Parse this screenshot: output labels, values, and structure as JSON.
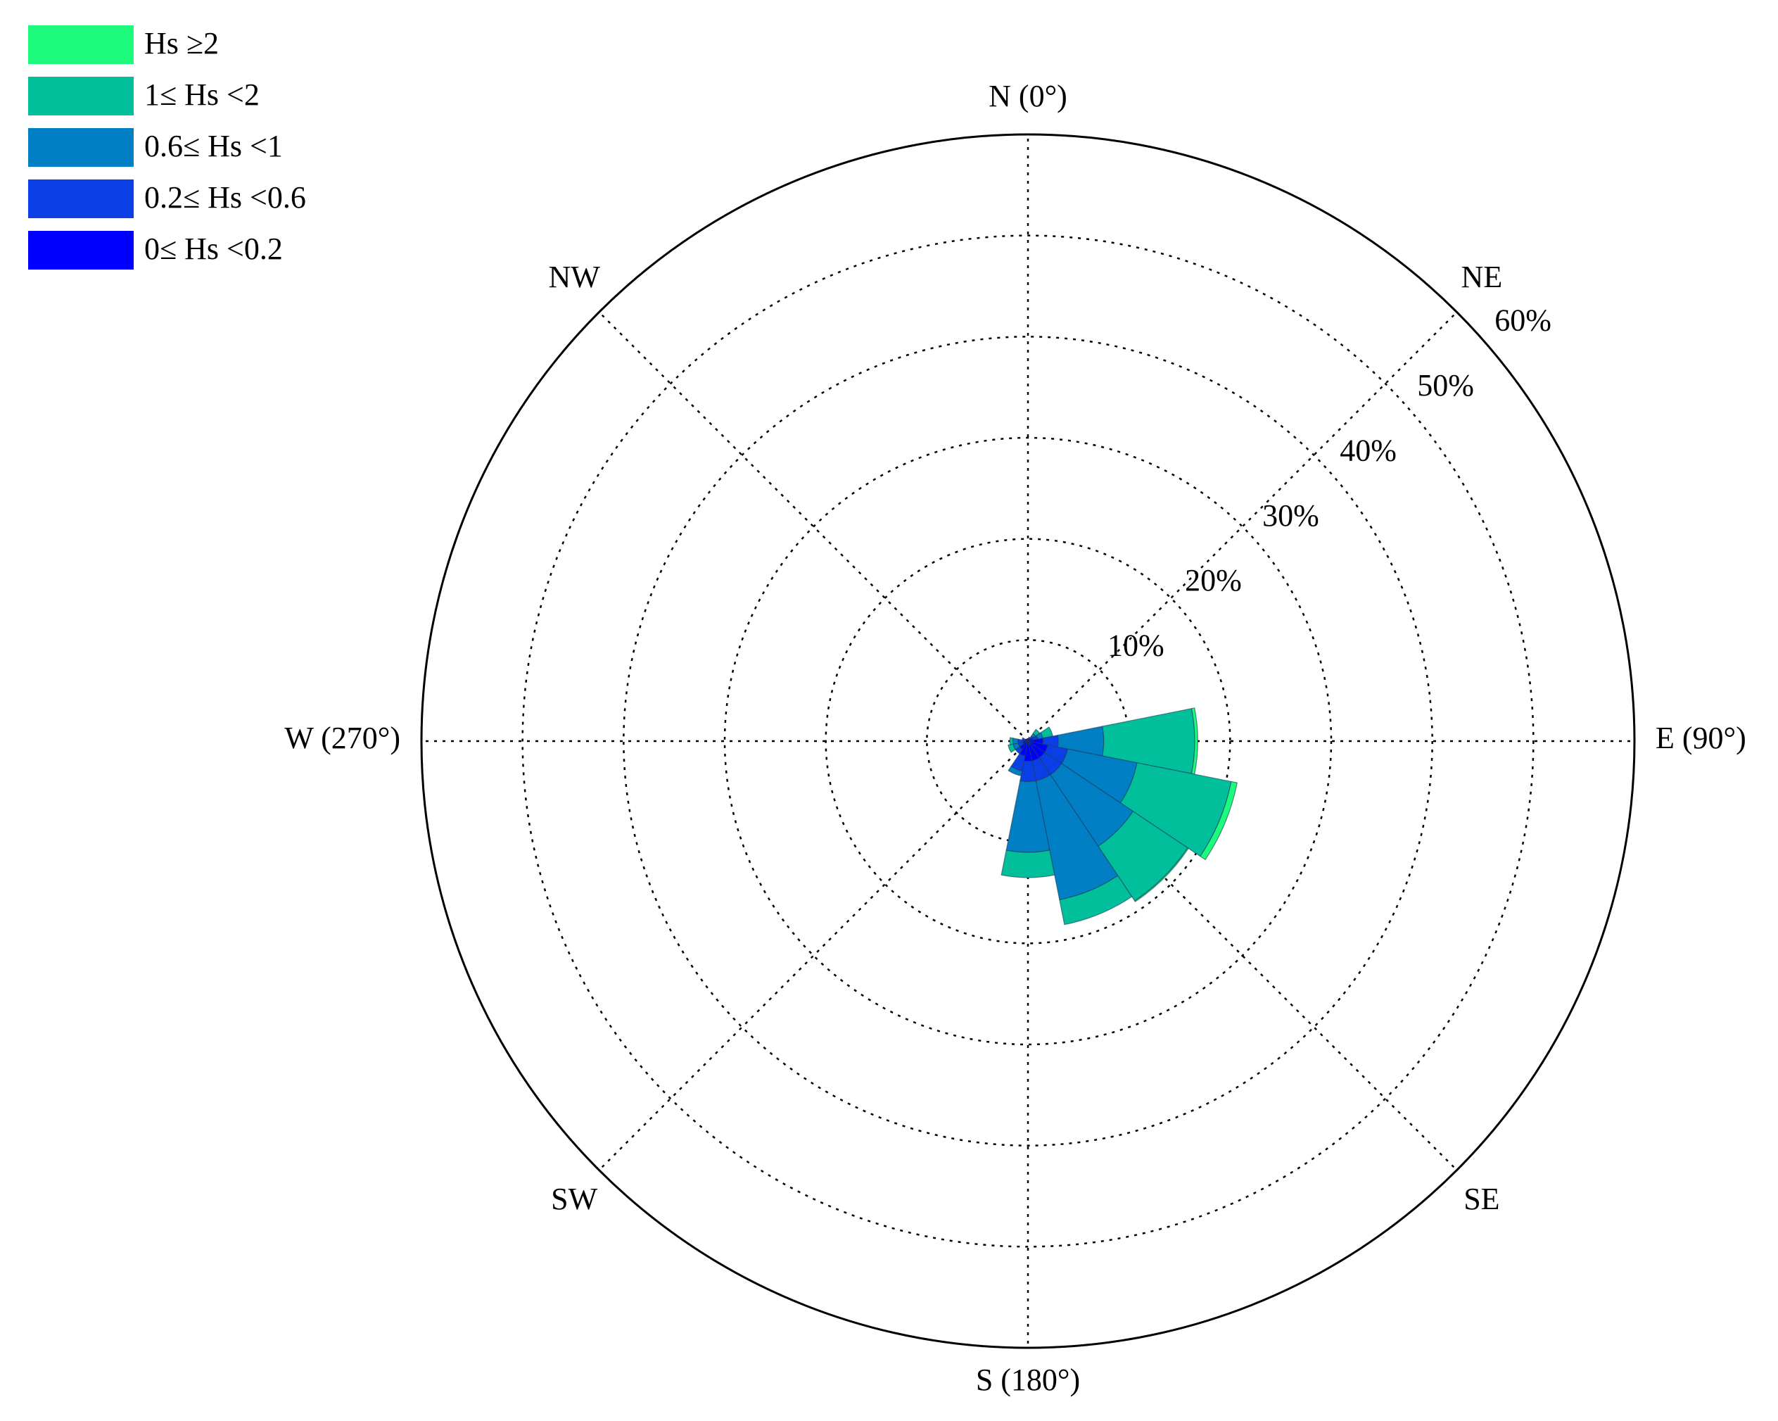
{
  "chart_data": {
    "type": "polar-bar",
    "direction_labels": [
      "N  (0°)",
      "NE",
      "E  (90°)",
      "SE",
      "S  (180°)",
      "SW",
      "W  (270°)",
      "NW"
    ],
    "rlim": [
      0,
      60
    ],
    "rticks": [
      {
        "value": 10,
        "label": "10%"
      },
      {
        "value": 20,
        "label": "20%"
      },
      {
        "value": 30,
        "label": "30%"
      },
      {
        "value": 40,
        "label": "40%"
      },
      {
        "value": 50,
        "label": "50%"
      },
      {
        "value": 60,
        "label": "60%"
      }
    ],
    "grid": true,
    "legend": "top-left",
    "x": [
      0,
      22.5,
      45,
      67.5,
      90,
      112.5,
      135,
      157.5,
      180,
      202.5,
      225,
      247.5,
      270,
      292.5,
      315,
      337.5
    ],
    "series": [
      {
        "name": "Hs ≥2",
        "color": "#1dfb7c",
        "values": [
          0,
          0,
          0,
          0,
          0.3,
          0.6,
          0.1,
          0,
          0,
          0,
          0,
          0,
          0,
          0,
          0,
          0
        ]
      },
      {
        "name": "1≤ Hs <2",
        "color": "#00bf9a",
        "values": [
          0,
          0,
          0.5,
          1,
          9,
          9.5,
          6.5,
          2.5,
          2.5,
          0,
          0,
          0.5,
          0.3,
          0,
          0,
          0
        ]
      },
      {
        "name": "0.6≤ Hs <1",
        "color": "#007fc4",
        "values": [
          0,
          0,
          0.3,
          0.5,
          4.5,
          7,
          8.5,
          12,
          7,
          0.5,
          0,
          0.5,
          0.5,
          0,
          0,
          0
        ]
      },
      {
        "name": "0.2≤ Hs <0.6",
        "color": "#0b3fe6",
        "values": [
          0,
          0.2,
          0.3,
          0.5,
          1.5,
          2,
          2,
          2,
          2,
          1.5,
          0.5,
          0.5,
          0.5,
          0.3,
          0,
          0
        ]
      },
      {
        "name": "0≤ Hs <0.2",
        "color": "#0000ff",
        "values": [
          0.2,
          0.2,
          0.3,
          0.5,
          1.5,
          2,
          2,
          2,
          2,
          1.5,
          1,
          0.5,
          0.5,
          0.3,
          0.2,
          0.2
        ]
      }
    ]
  }
}
